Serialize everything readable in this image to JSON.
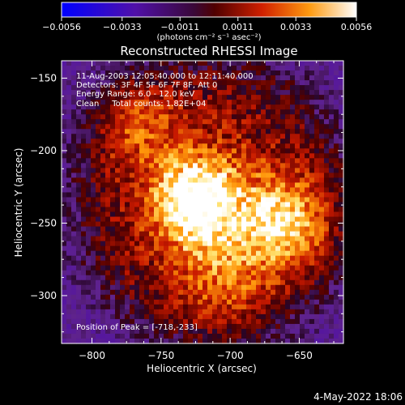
{
  "chart_data": {
    "type": "heatmap",
    "title": "Reconstructed RHESSI Image",
    "xlabel": "Heliocentric X (arcsec)",
    "ylabel": "Heliocentric Y (arcsec)",
    "xlim": [
      -822,
      -618
    ],
    "ylim": [
      -333,
      -138
    ],
    "xticks": [
      -800,
      -750,
      -700,
      -650
    ],
    "yticks": [
      -150,
      -200,
      -250,
      -300
    ],
    "colorbar": {
      "ticks": [
        "-0.0056",
        "-0.0033",
        "-0.0011",
        "0.0011",
        "0.0033",
        "0.0056"
      ],
      "range": [
        -0.0056,
        0.0056
      ],
      "unit_label": "(photons cm⁻² s⁻¹ asec⁻²)"
    },
    "peak": [
      -718,
      -233
    ],
    "sources": [
      {
        "x": -725,
        "y": -235,
        "intensity": 0.0056
      },
      {
        "x": -662,
        "y": -250,
        "intensity": 0.0042
      },
      {
        "x": -770,
        "y": -178,
        "intensity": 0.0022
      },
      {
        "x": -705,
        "y": -288,
        "intensity": 0.002
      }
    ],
    "annotations": {
      "time": "11-Aug-2003 12:05:40.000 to 12:11:40.000",
      "detectors": "Detectors: 3F 4F 5F 6F 7F 8F, Att 0",
      "energy": "Energy Range: 6.0 - 12.0 keV",
      "clean": "Clean     Total counts: 1.82E+04",
      "peak_label": "Position of Peak = [-718,-233]"
    }
  },
  "footer": {
    "date": "4-May-2022 18:06"
  }
}
